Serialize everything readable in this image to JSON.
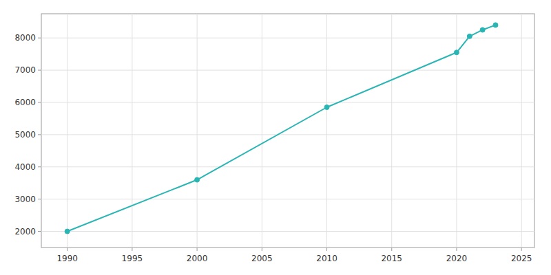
{
  "chart_data": {
    "type": "line",
    "x": [
      1990,
      2000,
      2010,
      2020,
      2021,
      2022,
      2023
    ],
    "values": [
      2000,
      3600,
      5850,
      7550,
      8050,
      8250,
      8400
    ],
    "color": "#2ab5b5",
    "marker": "o",
    "xlim": [
      1988,
      2026
    ],
    "ylim": [
      1500,
      8750
    ],
    "xticks": [
      1990,
      1995,
      2000,
      2005,
      2010,
      2015,
      2020,
      2025
    ],
    "yticks": [
      2000,
      3000,
      4000,
      5000,
      6000,
      7000,
      8000
    ],
    "grid": true
  }
}
